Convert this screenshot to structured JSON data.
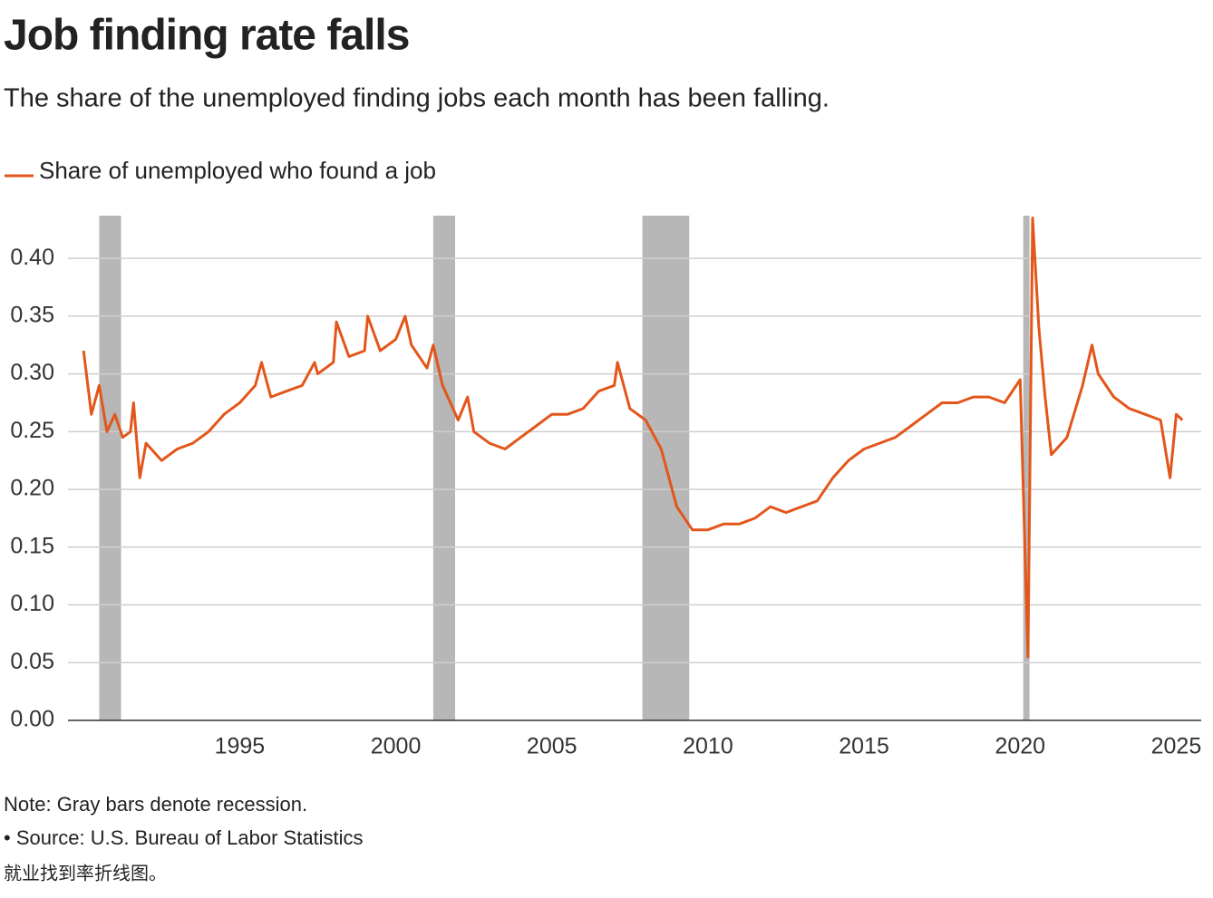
{
  "chart_data": {
    "type": "line",
    "title": "Job finding rate falls",
    "subtitle": "The share of the unemployed finding jobs each month has been falling.",
    "note": "Note: Gray bars denote recession.",
    "source": "• Source: U.S. Bureau of Labor Statistics",
    "caption": "就业找到率折线图。",
    "recessions": [
      [
        1990.5,
        1991.2
      ],
      [
        2001.2,
        2001.9
      ],
      [
        2007.9,
        2009.4
      ],
      [
        2020.1,
        2020.3
      ]
    ],
    "recession_color": "#b7b7b7",
    "x": [
      1990.0,
      1990.25,
      1990.5,
      1990.75,
      1991.0,
      1991.25,
      1991.5,
      1991.6,
      1991.8,
      1992.0,
      1992.5,
      1993.0,
      1993.5,
      1994.0,
      1994.5,
      1995.0,
      1995.5,
      1995.7,
      1996.0,
      1996.5,
      1997.0,
      1997.4,
      1997.5,
      1998.0,
      1998.1,
      1998.5,
      1999.0,
      1999.1,
      1999.5,
      2000.0,
      2000.3,
      2000.5,
      2001.0,
      2001.2,
      2001.5,
      2002.0,
      2002.3,
      2002.5,
      2003.0,
      2003.5,
      2004.0,
      2004.5,
      2005.0,
      2005.5,
      2006.0,
      2006.5,
      2007.0,
      2007.1,
      2007.5,
      2008.0,
      2008.5,
      2009.0,
      2009.5,
      2010.0,
      2010.5,
      2011.0,
      2011.5,
      2012.0,
      2012.5,
      2013.0,
      2013.5,
      2014.0,
      2014.5,
      2015.0,
      2015.5,
      2016.0,
      2016.5,
      2017.0,
      2017.5,
      2018.0,
      2018.5,
      2019.0,
      2019.5,
      2020.0,
      2020.25,
      2020.4,
      2020.6,
      2020.8,
      2021.0,
      2021.5,
      2022.0,
      2022.3,
      2022.5,
      2023.0,
      2023.5,
      2024.0,
      2024.5,
      2024.8,
      2025.0,
      2025.2
    ],
    "series": [
      {
        "name": "Share of unemployed who found a job",
        "color": "#e3561b",
        "values": [
          0.32,
          0.265,
          0.29,
          0.25,
          0.265,
          0.245,
          0.25,
          0.275,
          0.21,
          0.24,
          0.225,
          0.235,
          0.24,
          0.25,
          0.265,
          0.275,
          0.29,
          0.31,
          0.28,
          0.285,
          0.29,
          0.31,
          0.3,
          0.31,
          0.345,
          0.315,
          0.32,
          0.35,
          0.32,
          0.33,
          0.35,
          0.325,
          0.305,
          0.325,
          0.29,
          0.26,
          0.28,
          0.25,
          0.24,
          0.235,
          0.245,
          0.255,
          0.265,
          0.265,
          0.27,
          0.285,
          0.29,
          0.31,
          0.27,
          0.26,
          0.235,
          0.185,
          0.165,
          0.165,
          0.17,
          0.17,
          0.175,
          0.185,
          0.18,
          0.185,
          0.19,
          0.21,
          0.225,
          0.235,
          0.24,
          0.245,
          0.255,
          0.265,
          0.275,
          0.275,
          0.28,
          0.28,
          0.275,
          0.295,
          0.055,
          0.435,
          0.34,
          0.28,
          0.23,
          0.245,
          0.29,
          0.325,
          0.3,
          0.28,
          0.27,
          0.265,
          0.26,
          0.21,
          0.265,
          0.26
        ]
      }
    ],
    "xlim": [
      1989.5,
      2025.8
    ],
    "xticks": [
      1995,
      2000,
      2005,
      2010,
      2015,
      2020,
      2025
    ],
    "ylim": [
      0,
      0.437
    ],
    "yticks": [
      {
        "value": 0,
        "label": "0.00"
      },
      {
        "value": 0.05,
        "label": "0.05"
      },
      {
        "value": 0.1,
        "label": "0.10"
      },
      {
        "value": 0.15,
        "label": "0.15"
      },
      {
        "value": 0.2,
        "label": "0.20"
      },
      {
        "value": 0.25,
        "label": "0.25"
      },
      {
        "value": 0.3,
        "label": "0.30"
      },
      {
        "value": 0.35,
        "label": "0.35"
      },
      {
        "value": 0.4,
        "label": "0.40"
      }
    ],
    "grid": true
  }
}
